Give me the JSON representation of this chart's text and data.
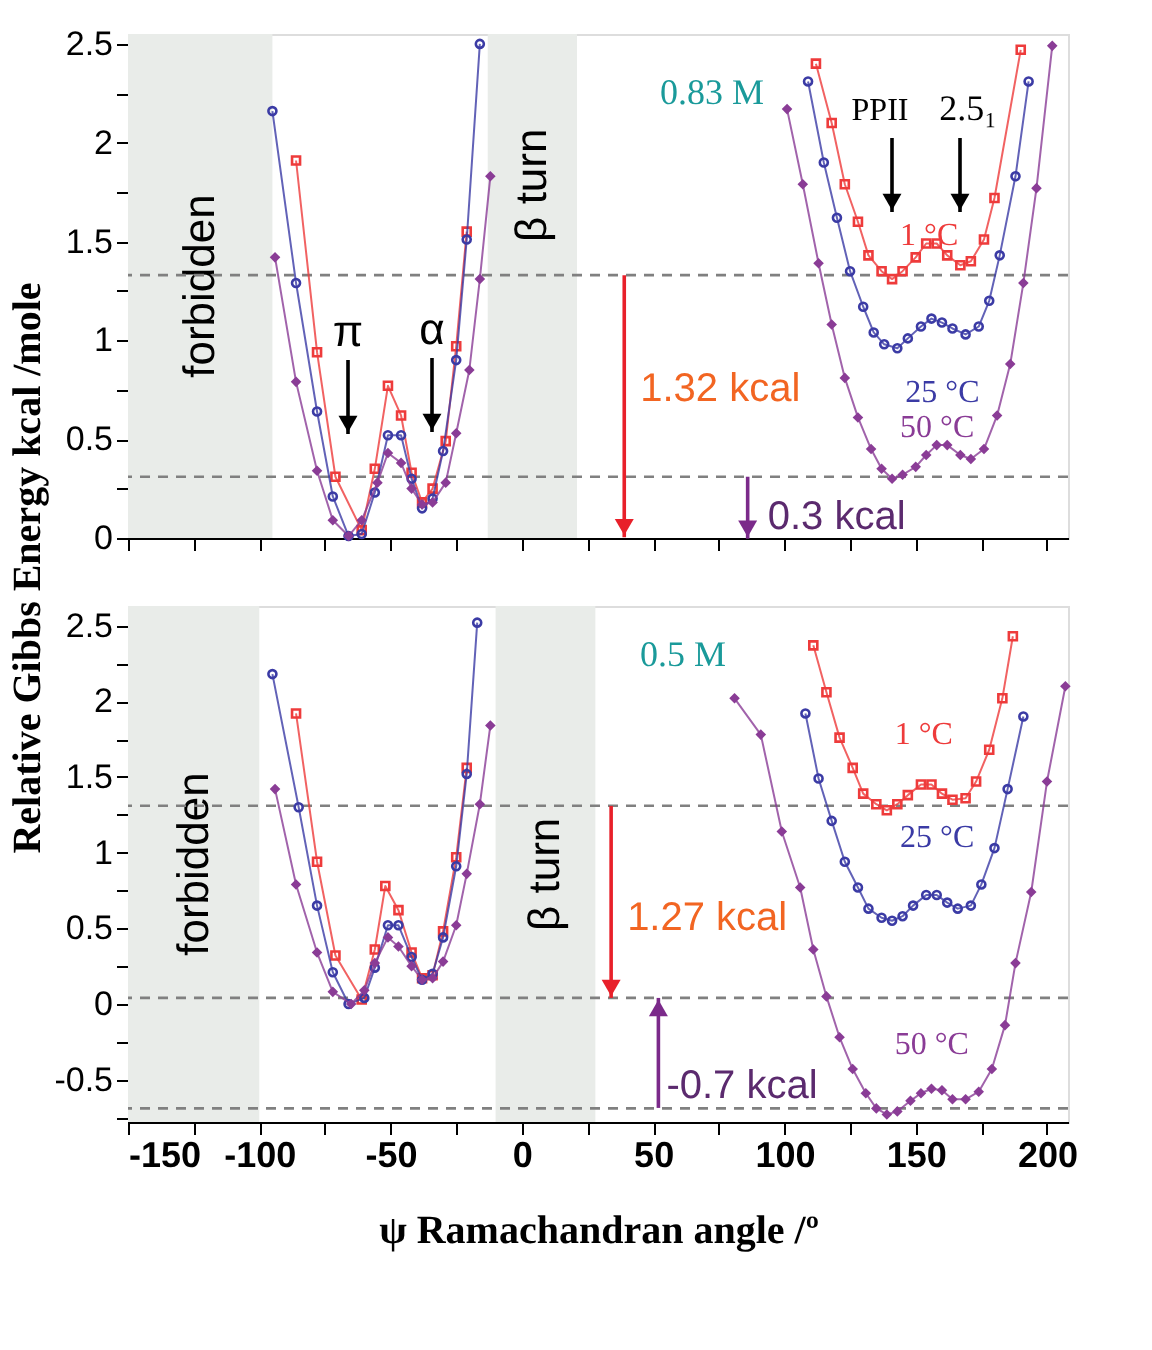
{
  "chart_data": [
    {
      "type": "line",
      "ylabel": "Relative Gibbs Energy kcal /mole",
      "xlim": [
        -150,
        208
      ],
      "ylim": [
        0,
        2.55
      ],
      "xticks": [
        -150,
        {
          "value": -125,
          "label": null
        },
        -100,
        {
          "value": -75,
          "label": null
        },
        -50,
        {
          "value": -25,
          "label": null
        },
        0,
        {
          "value": 25,
          "label": null
        },
        50,
        {
          "value": 75,
          "label": null
        },
        100,
        {
          "value": 125,
          "label": null
        },
        150,
        {
          "value": 175,
          "label": null
        },
        200
      ],
      "yticks": [
        0,
        {
          "value": 0.25,
          "label": null
        },
        0.5,
        {
          "value": 0.75,
          "label": null
        },
        1,
        {
          "value": 1.25,
          "label": null
        },
        1.5,
        {
          "value": 1.75,
          "label": null
        },
        2,
        {
          "value": 2.25,
          "label": null
        },
        2.5
      ],
      "tick_labels": "y",
      "grid": false,
      "line_style": "solid",
      "series": [
        {
          "name": "1 °C",
          "color": "#ee3b3b",
          "marker": "square",
          "x": [
            -86,
            -78,
            -71,
            -61,
            -56,
            -51,
            -46,
            -42,
            -38,
            -34,
            -29,
            -25,
            -21,
            45,
            112,
            118,
            123,
            128,
            132,
            137,
            141,
            145,
            150,
            154,
            158,
            162,
            167,
            171,
            176,
            180,
            190
          ],
          "values": [
            1.91,
            0.94,
            0.31,
            0.04,
            0.35,
            0.77,
            0.62,
            0.33,
            0.18,
            0.25,
            0.49,
            0.97,
            1.55,
            null,
            2.4,
            2.1,
            1.79,
            1.6,
            1.43,
            1.35,
            1.31,
            1.35,
            1.42,
            1.49,
            1.49,
            1.43,
            1.38,
            1.4,
            1.51,
            1.72,
            2.47
          ]
        },
        {
          "name": "25 °C",
          "color": "#3b3ba5",
          "marker": "circle",
          "x": [
            -95,
            -86,
            -78,
            -72,
            -66,
            -61,
            -56,
            -51,
            -46,
            -42,
            -38,
            -34,
            -30,
            -25,
            -21,
            -16,
            45,
            109,
            115,
            120,
            125,
            130,
            134,
            138,
            143,
            147,
            152,
            156,
            160,
            164,
            169,
            174,
            178,
            182,
            188,
            193
          ],
          "values": [
            2.16,
            1.29,
            0.64,
            0.21,
            0.01,
            0.02,
            0.23,
            0.52,
            0.52,
            0.3,
            0.15,
            0.2,
            0.44,
            0.9,
            1.51,
            2.5,
            null,
            2.31,
            1.9,
            1.62,
            1.35,
            1.17,
            1.04,
            0.98,
            0.96,
            1.01,
            1.07,
            1.11,
            1.09,
            1.06,
            1.03,
            1.07,
            1.2,
            1.43,
            1.83,
            2.31
          ]
        },
        {
          "name": "50 °C",
          "color": "#8a3c96",
          "marker": "diamond",
          "x": [
            -94,
            -86,
            -78,
            -72,
            -66,
            -61,
            -55,
            -51,
            -46,
            -42,
            -38,
            -34,
            -29,
            -25,
            -20,
            -16,
            -12,
            45,
            101,
            107,
            113,
            118,
            123,
            128,
            133,
            137,
            141,
            145,
            150,
            154,
            158,
            162,
            167,
            171,
            176,
            181,
            186,
            191,
            196,
            202
          ],
          "values": [
            1.42,
            0.79,
            0.34,
            0.09,
            0.01,
            0.09,
            0.28,
            0.43,
            0.38,
            0.25,
            0.17,
            0.18,
            0.28,
            0.53,
            0.85,
            1.31,
            1.83,
            null,
            2.17,
            1.79,
            1.39,
            1.08,
            0.81,
            0.61,
            0.45,
            0.35,
            0.3,
            0.32,
            0.36,
            0.42,
            0.47,
            0.47,
            0.42,
            0.4,
            0.45,
            0.62,
            0.88,
            1.29,
            1.77,
            2.49
          ]
        }
      ],
      "bands": [
        {
          "axis": "x",
          "from": -150,
          "to": -95,
          "label": "forbidden",
          "color": "#e9ece9"
        },
        {
          "axis": "x",
          "from": -13,
          "to": 21,
          "label": "β turn",
          "color": "#e9ece9"
        }
      ],
      "ref_lines": [
        {
          "axis": "y",
          "value": 1.33,
          "color": "#808080",
          "line_style": "dashed"
        },
        {
          "axis": "y",
          "value": 0.31,
          "color": "#808080",
          "line_style": "dashed"
        }
      ],
      "annotations": [
        "0.83 M",
        "π",
        "α",
        "PPII",
        "2.5₁",
        {
          "text": "1.32 kcal",
          "x": 39,
          "y": 1.33
        },
        {
          "text": "0.3 kcal",
          "x": 86,
          "y": 0.31
        }
      ]
    },
    {
      "type": "line",
      "xlabel": "ψ  Ramachandran angle /º",
      "xlim": [
        -150,
        208
      ],
      "ylim": [
        -0.78,
        2.63
      ],
      "xticks": [
        -150,
        {
          "value": -125,
          "label": null
        },
        -100,
        {
          "value": -75,
          "label": null
        },
        -50,
        {
          "value": -25,
          "label": null
        },
        0,
        {
          "value": 25,
          "label": null
        },
        50,
        {
          "value": 75,
          "label": null
        },
        100,
        {
          "value": 125,
          "label": null
        },
        150,
        {
          "value": 175,
          "label": null
        },
        200
      ],
      "yticks": [
        {
          "value": -0.75,
          "label": null
        },
        -0.5,
        {
          "value": -0.25,
          "label": null
        },
        0,
        {
          "value": 0.25,
          "label": null
        },
        0.5,
        {
          "value": 0.75,
          "label": null
        },
        1,
        {
          "value": 1.25,
          "label": null
        },
        1.5,
        {
          "value": 1.75,
          "label": null
        },
        2,
        {
          "value": 2.25,
          "label": null
        },
        2.5
      ],
      "grid": false,
      "line_style": "solid",
      "series": [
        {
          "name": "1 °C",
          "color": "#ee3b3b",
          "marker": "square",
          "x": [
            -86,
            -78,
            -71,
            -61,
            -56,
            -52,
            -47,
            -42,
            -38,
            -34,
            -30,
            -25,
            -21,
            45,
            111,
            116,
            121,
            126,
            130,
            135,
            139,
            143,
            147,
            152,
            156,
            160,
            164,
            169,
            173,
            178,
            183,
            187
          ],
          "values": [
            1.92,
            0.94,
            0.32,
            0.03,
            0.36,
            0.78,
            0.62,
            0.34,
            0.17,
            0.19,
            0.48,
            0.97,
            1.56,
            null,
            2.37,
            2.06,
            1.76,
            1.56,
            1.39,
            1.32,
            1.28,
            1.32,
            1.38,
            1.45,
            1.45,
            1.39,
            1.35,
            1.36,
            1.47,
            1.68,
            2.02,
            2.43
          ]
        },
        {
          "name": "25 °C",
          "color": "#3b3ba5",
          "marker": "circle",
          "x": [
            -95,
            -85,
            -78,
            -72,
            -66,
            -60,
            -56,
            -51,
            -47,
            -42,
            -38,
            -34,
            -30,
            -25,
            -21,
            -17,
            45,
            108,
            113,
            118,
            123,
            128,
            132,
            137,
            141,
            145,
            149,
            154,
            158,
            162,
            166,
            171,
            175,
            180,
            185,
            191
          ],
          "values": [
            2.18,
            1.3,
            0.65,
            0.21,
            0.0,
            0.04,
            0.24,
            0.52,
            0.52,
            0.31,
            0.16,
            0.2,
            0.44,
            0.91,
            1.52,
            2.52,
            null,
            1.92,
            1.49,
            1.21,
            0.94,
            0.77,
            0.63,
            0.57,
            0.55,
            0.58,
            0.65,
            0.72,
            0.72,
            0.67,
            0.63,
            0.65,
            0.79,
            1.03,
            1.42,
            1.9
          ]
        },
        {
          "name": "50 °C",
          "color": "#8a3c96",
          "marker": "diamond",
          "x": [
            -94,
            -86,
            -78,
            -72,
            -65,
            -60,
            -56,
            -51,
            -47,
            -42,
            -38,
            -34,
            -30,
            -25,
            -21,
            -16,
            -12,
            45,
            81,
            91,
            99,
            106,
            111,
            116,
            121,
            126,
            131,
            135,
            139,
            143,
            148,
            152,
            156,
            160,
            164,
            169,
            174,
            179,
            184,
            188,
            194,
            200,
            207
          ],
          "values": [
            1.42,
            0.79,
            0.34,
            0.08,
            0.0,
            0.09,
            0.27,
            0.44,
            0.38,
            0.25,
            0.16,
            0.17,
            0.28,
            0.52,
            0.86,
            1.32,
            1.84,
            null,
            2.02,
            1.78,
            1.14,
            0.77,
            0.36,
            0.05,
            -0.22,
            -0.43,
            -0.59,
            -0.69,
            -0.73,
            -0.71,
            -0.64,
            -0.59,
            -0.56,
            -0.57,
            -0.63,
            -0.63,
            -0.58,
            -0.43,
            -0.14,
            0.27,
            0.74,
            1.47,
            2.1
          ]
        }
      ],
      "bands": [
        {
          "axis": "x",
          "from": -150,
          "to": -100,
          "label": "forbidden",
          "color": "#e9ece9"
        },
        {
          "axis": "x",
          "from": -10,
          "to": 28,
          "label": "β turn",
          "color": "#e9ece9"
        }
      ],
      "ref_lines": [
        {
          "axis": "y",
          "value": 1.31,
          "color": "#808080",
          "line_style": "dashed"
        },
        {
          "axis": "y",
          "value": 0.04,
          "color": "#808080",
          "line_style": "dashed"
        },
        {
          "axis": "y",
          "value": -0.69,
          "color": "#808080",
          "line_style": "dashed"
        }
      ],
      "annotations": [
        "0.5 M",
        {
          "text": "1.27 kcal",
          "x": 34,
          "y": 0.04
        },
        {
          "text": "-0.7 kcal",
          "x": 52,
          "y": 0.04
        }
      ]
    }
  ]
}
